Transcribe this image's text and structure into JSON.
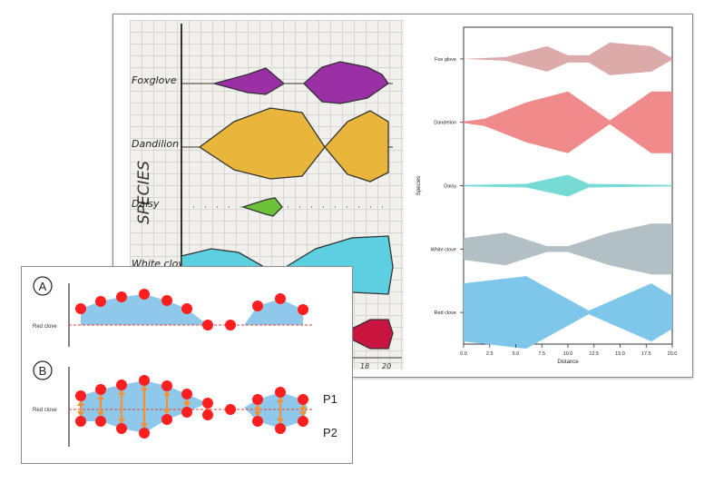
{
  "hand_plot": {
    "species": [
      "Foxglove",
      "Dandilion",
      "Daisy",
      "White clove"
    ],
    "axis_label": "SPECIES",
    "tick_labels": [
      "18",
      "20"
    ],
    "colors": {
      "foxglove": "#9b2fa6",
      "dandilion": "#e9b63b",
      "daisy": "#6cc23a",
      "white_clove": "#5ccfe0",
      "red_clove": "#c8143f"
    }
  },
  "chart_data": {
    "type": "violin",
    "ylabel": "Species",
    "xlabel": "Distance",
    "xlim": [
      0,
      20
    ],
    "x_ticks": [
      "0.0",
      "2.5",
      "5.0",
      "7.5",
      "10.0",
      "12.5",
      "15.0",
      "17.5",
      "20.0"
    ],
    "series": [
      {
        "name": "Fox glove",
        "color": "#dcaaa9",
        "x": [
          0,
          4,
          8,
          10,
          12,
          14,
          18,
          20
        ],
        "half_width": [
          0,
          0.05,
          0.35,
          0.1,
          0.1,
          0.45,
          0.35,
          0.02
        ]
      },
      {
        "name": "Dandelion",
        "color": "#f08a8b",
        "x": [
          0,
          2,
          6,
          10,
          14,
          18,
          20
        ],
        "half_width": [
          0.02,
          0.1,
          0.55,
          0.85,
          0.05,
          0.85,
          0.85
        ]
      },
      {
        "name": "Daisy",
        "color": "#76dbd4",
        "x": [
          0,
          6,
          10,
          12,
          20
        ],
        "half_width": [
          0.02,
          0.05,
          0.3,
          0.05,
          0.02
        ]
      },
      {
        "name": "White clove",
        "color": "#b2bfc4",
        "x": [
          0,
          4,
          8,
          10,
          14,
          18,
          20
        ],
        "half_width": [
          0.3,
          0.45,
          0.08,
          0.08,
          0.45,
          0.7,
          0.7
        ]
      },
      {
        "name": "Red clove",
        "color": "#7ec6ea",
        "x": [
          0,
          6,
          12,
          14,
          18,
          20
        ],
        "half_width": [
          0.8,
          1.0,
          0.05,
          0.3,
          0.8,
          0.45
        ]
      }
    ]
  },
  "inset": {
    "panel_a_label": "A",
    "panel_b_label": "B",
    "row_label": "Red clove",
    "p1_label": "P1",
    "p2_label": "P2"
  }
}
